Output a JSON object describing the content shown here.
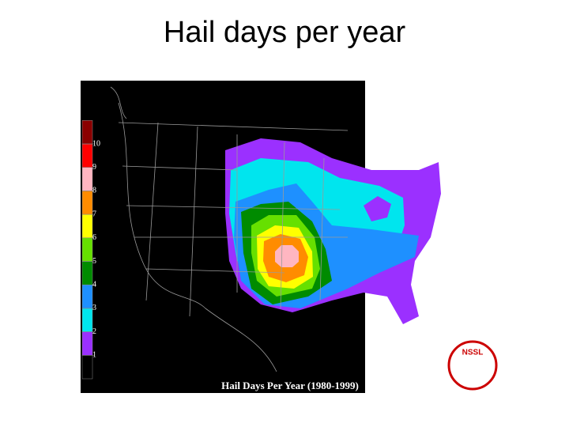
{
  "title": "Hail days per year",
  "map": {
    "caption": "Hail Days Per Year (1980-1999)",
    "logo": "NSSL",
    "legend": {
      "ticks": [
        1,
        2,
        3,
        4,
        5,
        6,
        7,
        8,
        9,
        10
      ],
      "colors": [
        "#000000",
        "#9b30ff",
        "#00e5ee",
        "#1e90ff",
        "#008b00",
        "#66e000",
        "#ffff00",
        "#ff8c00",
        "#ffb6c1",
        "#ff0000",
        "#8b0000"
      ]
    }
  }
}
